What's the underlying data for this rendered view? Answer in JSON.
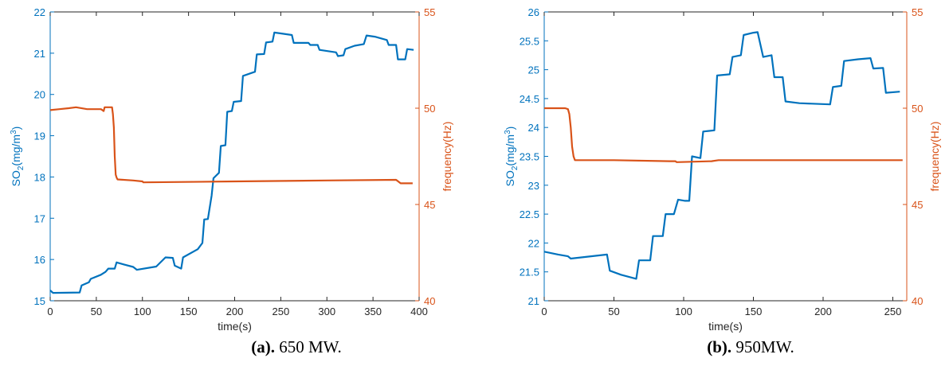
{
  "colors": {
    "left_axis": "#0072BD",
    "right_axis": "#D95319",
    "axis_box": "#262626"
  },
  "captions": [
    {
      "tag": "(a).",
      "text": " 650 MW."
    },
    {
      "tag": "(b).",
      "text": " 950MW."
    }
  ],
  "chart_data": [
    {
      "type": "line",
      "xlabel": "time(s)",
      "ylabel_left": "SO2(mg/m3)",
      "ylabel_right": "frequency(Hz)",
      "xlim": [
        0,
        400
      ],
      "ylim_left": [
        15,
        22
      ],
      "ylim_right": [
        40,
        55
      ],
      "xticks": [
        0,
        50,
        100,
        150,
        200,
        250,
        300,
        350,
        400
      ],
      "yticks_left": [
        15,
        16,
        17,
        18,
        19,
        20,
        21,
        22
      ],
      "yticks_right": [
        40,
        45,
        50,
        55
      ],
      "grid": false,
      "series": [
        {
          "axis": "left",
          "values": [
            [
              0,
              15.25
            ],
            [
              3,
              15.19
            ],
            [
              32,
              15.2
            ],
            [
              34,
              15.37
            ],
            [
              42,
              15.45
            ],
            [
              44,
              15.53
            ],
            [
              55,
              15.63
            ],
            [
              60,
              15.7
            ],
            [
              63,
              15.78
            ],
            [
              70,
              15.78
            ],
            [
              72,
              15.93
            ],
            [
              80,
              15.88
            ],
            [
              90,
              15.82
            ],
            [
              94,
              15.75
            ],
            [
              115,
              15.83
            ],
            [
              125,
              16.05
            ],
            [
              133,
              16.04
            ],
            [
              135,
              15.85
            ],
            [
              142,
              15.78
            ],
            [
              144,
              16.05
            ],
            [
              160,
              16.25
            ],
            [
              165,
              16.4
            ],
            [
              167,
              16.97
            ],
            [
              171,
              16.98
            ],
            [
              175,
              17.55
            ],
            [
              177,
              17.97
            ],
            [
              183,
              18.1
            ],
            [
              185,
              18.75
            ],
            [
              190,
              18.77
            ],
            [
              192,
              19.58
            ],
            [
              197,
              19.6
            ],
            [
              199,
              19.82
            ],
            [
              207,
              19.84
            ],
            [
              209,
              20.45
            ],
            [
              222,
              20.55
            ],
            [
              224,
              20.97
            ],
            [
              232,
              20.98
            ],
            [
              234,
              21.26
            ],
            [
              241,
              21.28
            ],
            [
              243,
              21.5
            ],
            [
              250,
              21.48
            ],
            [
              262,
              21.44
            ],
            [
              264,
              21.25
            ],
            [
              280,
              21.25
            ],
            [
              282,
              21.2
            ],
            [
              290,
              21.2
            ],
            [
              292,
              21.08
            ],
            [
              310,
              21.02
            ],
            [
              312,
              20.93
            ],
            [
              318,
              20.95
            ],
            [
              320,
              21.1
            ],
            [
              330,
              21.18
            ],
            [
              340,
              21.22
            ],
            [
              343,
              21.43
            ],
            [
              352,
              21.4
            ],
            [
              365,
              21.32
            ],
            [
              367,
              21.2
            ],
            [
              375,
              21.2
            ],
            [
              377,
              20.85
            ],
            [
              385,
              20.85
            ],
            [
              387,
              21.1
            ],
            [
              394,
              21.08
            ]
          ]
        },
        {
          "axis": "right",
          "values": [
            [
              0,
              49.9
            ],
            [
              10,
              49.95
            ],
            [
              20,
              50
            ],
            [
              28,
              50.05
            ],
            [
              40,
              49.95
            ],
            [
              55,
              49.95
            ],
            [
              58,
              49.85
            ],
            [
              59,
              50.05
            ],
            [
              67,
              50.05
            ],
            [
              68,
              49.7
            ],
            [
              69,
              49.0
            ],
            [
              70,
              47.5
            ],
            [
              71,
              46.55
            ],
            [
              72,
              46.4
            ],
            [
              73,
              46.3
            ],
            [
              90,
              46.25
            ],
            [
              100,
              46.2
            ],
            [
              101,
              46.15
            ],
            [
              200,
              46.2
            ],
            [
              300,
              46.25
            ],
            [
              375,
              46.28
            ],
            [
              380,
              46.1
            ],
            [
              393,
              46.1
            ]
          ]
        }
      ]
    },
    {
      "type": "line",
      "xlabel": "time(s)",
      "ylabel_left": "SO2(mg/m3)",
      "ylabel_right": "frequency(Hz)",
      "xlim": [
        0,
        260
      ],
      "ylim_left": [
        21,
        26
      ],
      "ylim_right": [
        40,
        55
      ],
      "xticks": [
        0,
        50,
        100,
        150,
        200,
        250
      ],
      "yticks_left": [
        21,
        21.5,
        22,
        22.5,
        23,
        23.5,
        24,
        24.5,
        25,
        25.5,
        26
      ],
      "yticks_right": [
        40,
        45,
        50,
        55
      ],
      "grid": false,
      "series": [
        {
          "axis": "left",
          "values": [
            [
              0,
              21.85
            ],
            [
              10,
              21.8
            ],
            [
              17,
              21.77
            ],
            [
              19,
              21.73
            ],
            [
              45,
              21.8
            ],
            [
              47,
              21.52
            ],
            [
              55,
              21.45
            ],
            [
              66,
              21.38
            ],
            [
              68,
              21.7
            ],
            [
              76,
              21.7
            ],
            [
              78,
              22.12
            ],
            [
              85,
              22.12
            ],
            [
              87,
              22.5
            ],
            [
              93,
              22.5
            ],
            [
              96,
              22.75
            ],
            [
              101,
              22.73
            ],
            [
              104,
              22.73
            ],
            [
              106,
              23.5
            ],
            [
              112,
              23.47
            ],
            [
              114,
              23.93
            ],
            [
              122,
              23.95
            ],
            [
              124,
              24.9
            ],
            [
              133,
              24.92
            ],
            [
              135,
              25.22
            ],
            [
              141,
              25.25
            ],
            [
              143,
              25.6
            ],
            [
              150,
              25.64
            ],
            [
              153,
              25.65
            ],
            [
              157,
              25.22
            ],
            [
              163,
              25.25
            ],
            [
              165,
              24.87
            ],
            [
              171,
              24.87
            ],
            [
              173,
              24.45
            ],
            [
              183,
              24.42
            ],
            [
              205,
              24.4
            ],
            [
              207,
              24.7
            ],
            [
              213,
              24.72
            ],
            [
              215,
              25.15
            ],
            [
              225,
              25.18
            ],
            [
              234,
              25.2
            ],
            [
              236,
              25.02
            ],
            [
              243,
              25.03
            ],
            [
              245,
              24.6
            ],
            [
              255,
              24.62
            ]
          ]
        },
        {
          "axis": "right",
          "values": [
            [
              0,
              50
            ],
            [
              10,
              50
            ],
            [
              15,
              50
            ],
            [
              17,
              49.95
            ],
            [
              18,
              49.7
            ],
            [
              19,
              49.0
            ],
            [
              20,
              48.0
            ],
            [
              21,
              47.5
            ],
            [
              22,
              47.3
            ],
            [
              30,
              47.3
            ],
            [
              50,
              47.3
            ],
            [
              90,
              47.25
            ],
            [
              94,
              47.25
            ],
            [
              95,
              47.2
            ],
            [
              120,
              47.25
            ],
            [
              123,
              47.28
            ],
            [
              125,
              47.3
            ],
            [
              200,
              47.3
            ],
            [
              257,
              47.3
            ]
          ]
        }
      ]
    }
  ]
}
